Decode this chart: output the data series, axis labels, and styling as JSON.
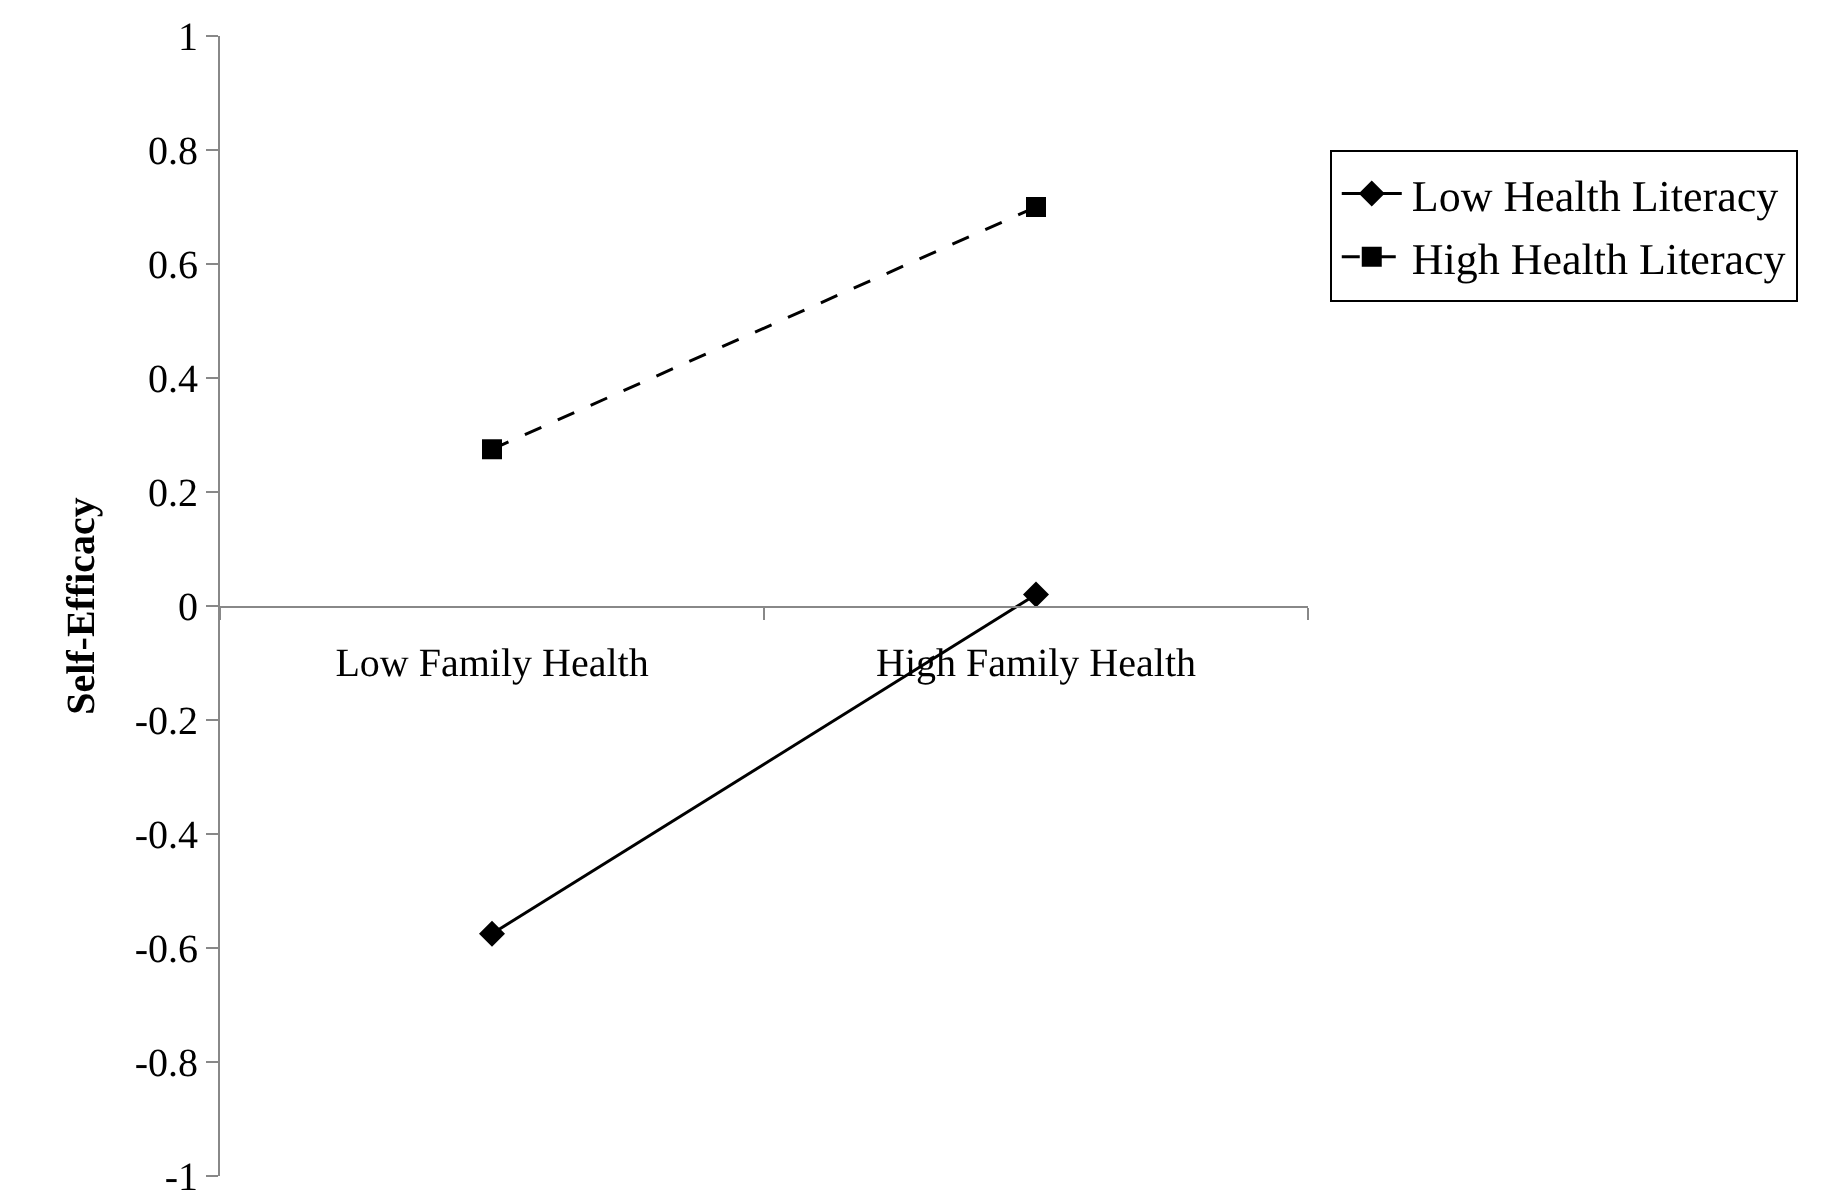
{
  "chart_data": {
    "type": "line",
    "ylabel": "Self-Efficacy",
    "categories": [
      "Low Family Health",
      "High Family Health"
    ],
    "series": [
      {
        "name": "Low Health Literacy",
        "color": "#000000",
        "values": [
          -0.575,
          0.02
        ],
        "marker": "diamond",
        "line_style": "solid"
      },
      {
        "name": "High Health Literacy",
        "color": "#000000",
        "values": [
          0.275,
          0.7
        ],
        "marker": "square",
        "line_style": "dashed"
      }
    ],
    "ylim": [
      -1,
      1
    ],
    "yticks": [
      -1,
      -0.8,
      -0.6,
      -0.4,
      -0.2,
      0,
      0.2,
      0.4,
      0.6,
      0.8,
      1
    ],
    "grid": false,
    "legend": "top right"
  }
}
